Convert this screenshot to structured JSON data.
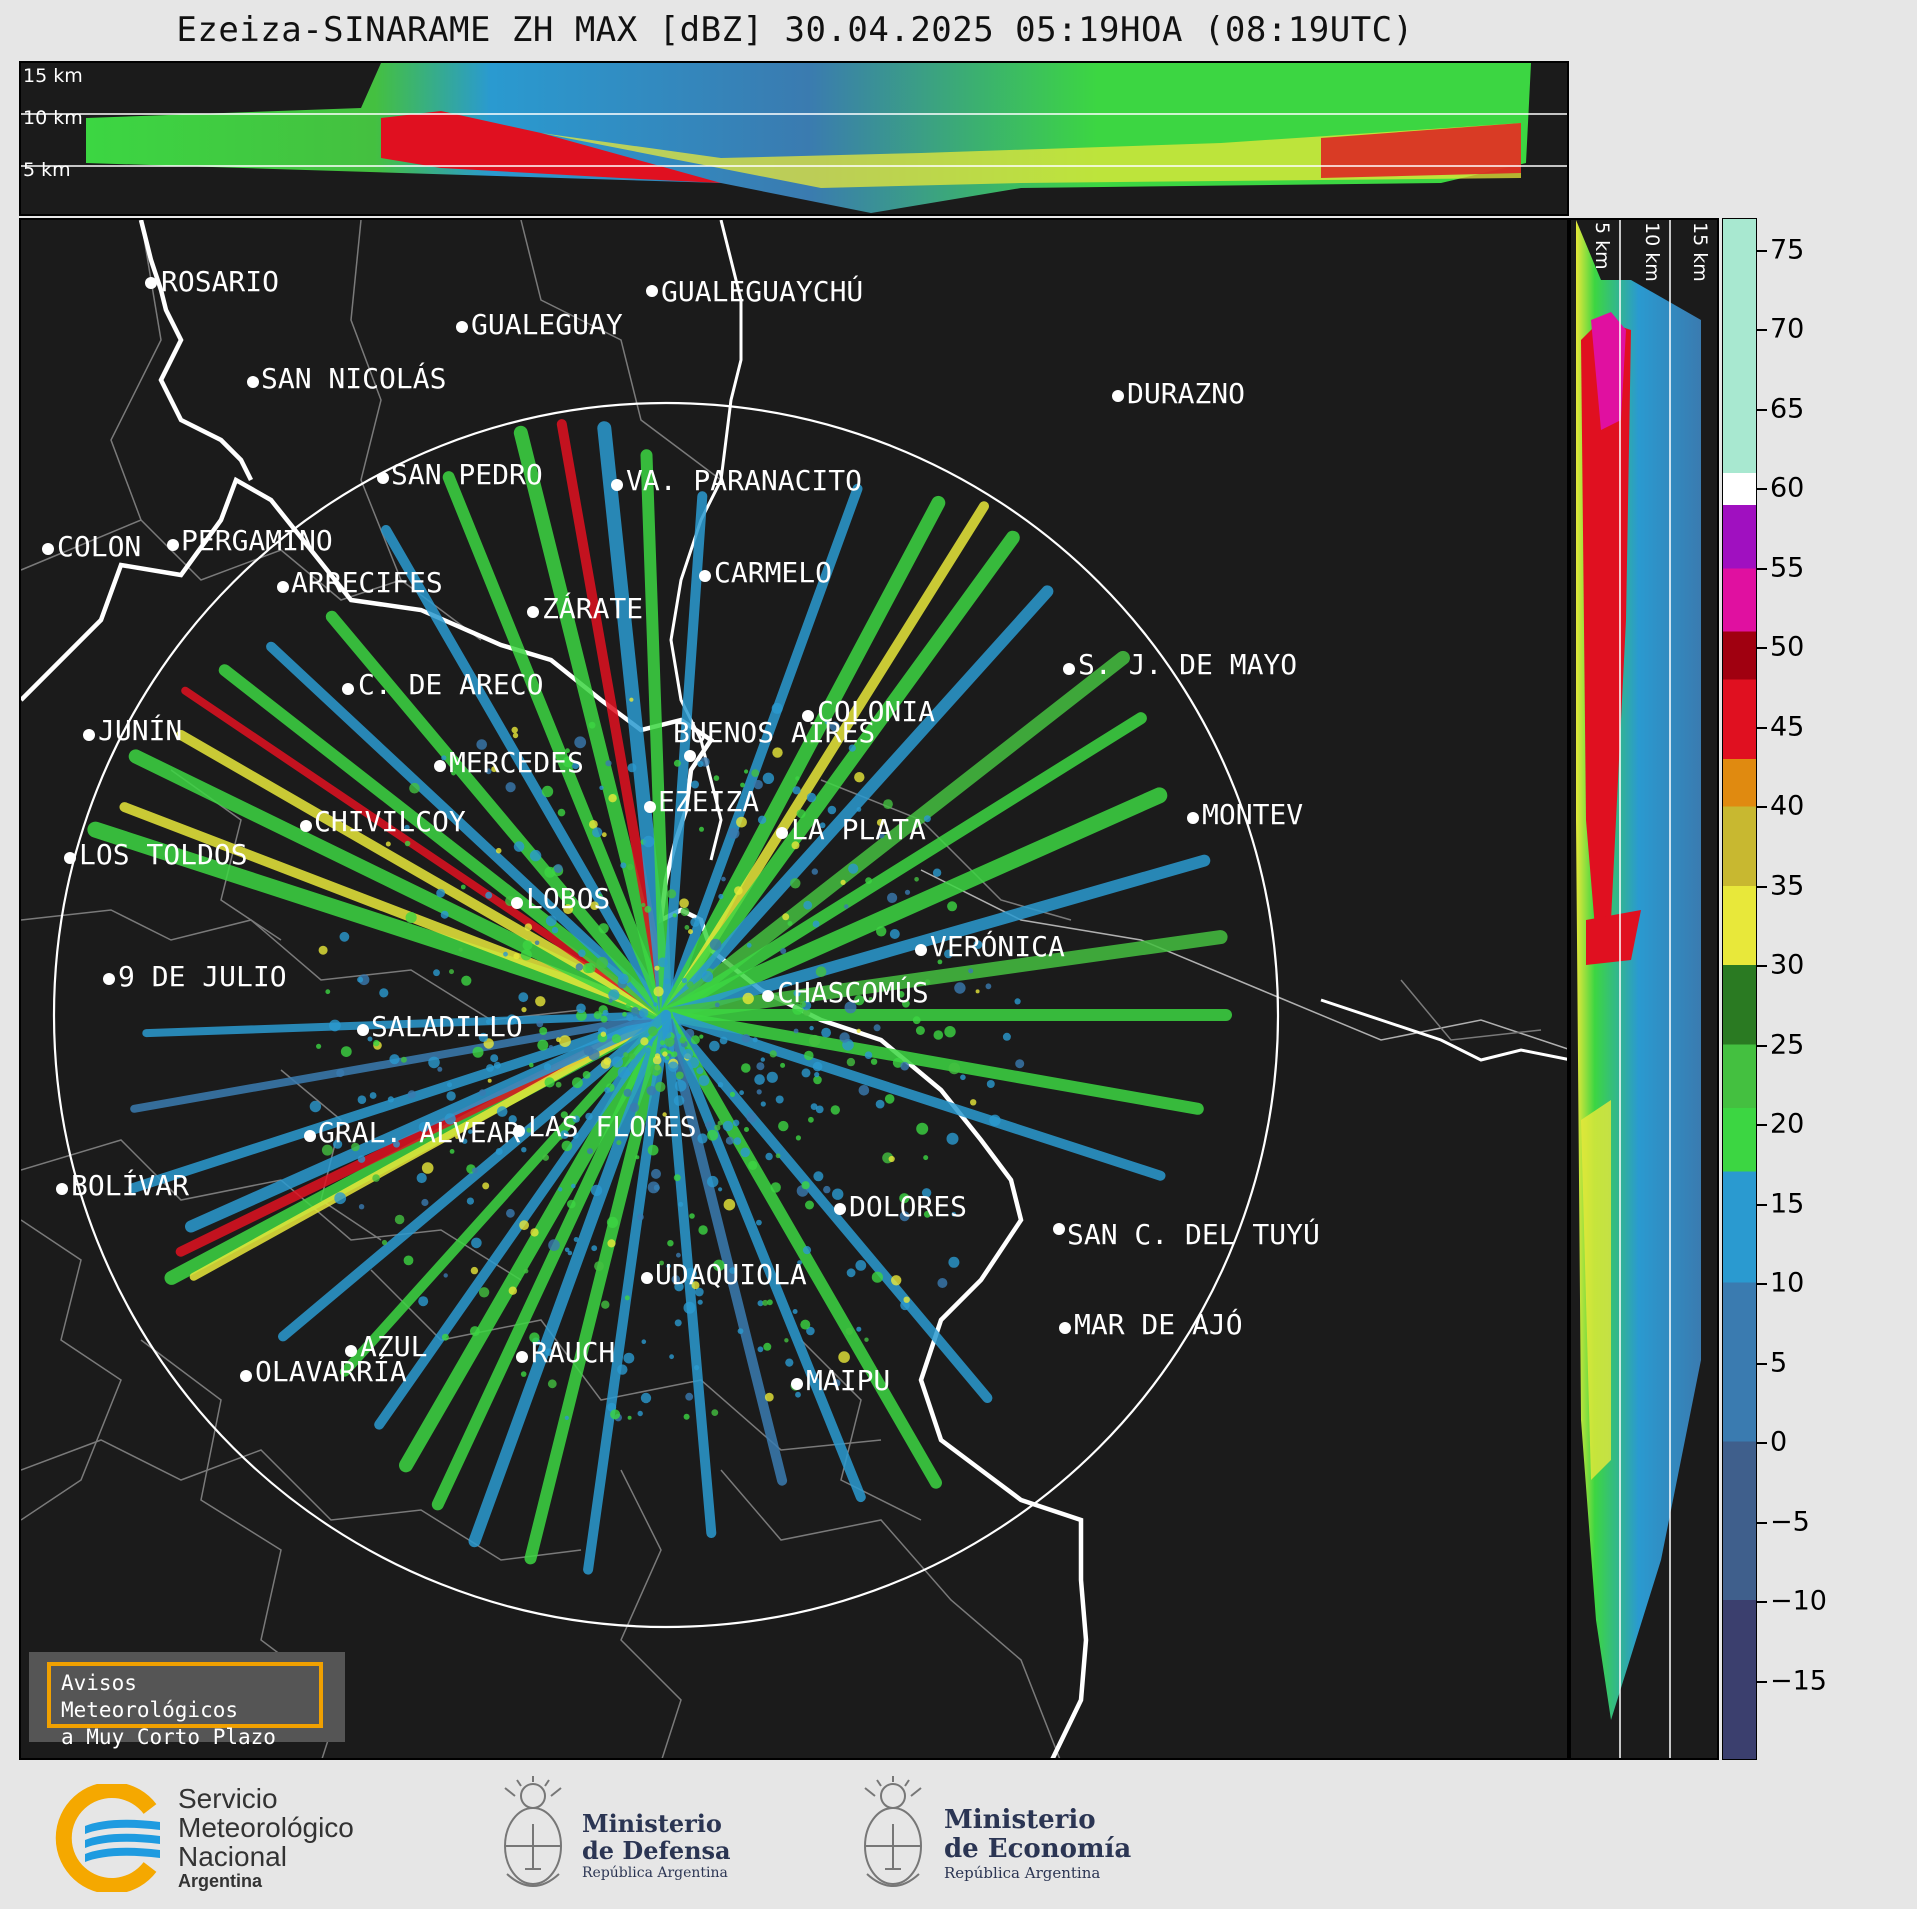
{
  "title": "Ezeiza-SINARAME ZH MAX [dBZ] 30.04.2025 05:19HOA (08:19UTC)",
  "height_labels_top": [
    "15 km",
    "10 km",
    "5 km"
  ],
  "height_labels_side": [
    "5 km",
    "10 km",
    "15 km"
  ],
  "cities": [
    {
      "name": "ROSARIO"
    },
    {
      "name": "GUALEGUAYCHÚ"
    },
    {
      "name": "GUALEGUAY"
    },
    {
      "name": "SAN NICOLÁS"
    },
    {
      "name": "DURAZNO"
    },
    {
      "name": "SAN PEDRO"
    },
    {
      "name": "VA. PARANACITO"
    },
    {
      "name": "COLON"
    },
    {
      "name": "PERGAMINO"
    },
    {
      "name": "CARMELO"
    },
    {
      "name": "ARRECIFES"
    },
    {
      "name": "ZÁRATE"
    },
    {
      "name": "S. J. DE MAYO"
    },
    {
      "name": "C. DE ARECO"
    },
    {
      "name": "COLONIA"
    },
    {
      "name": "JUNÍN"
    },
    {
      "name": "BUENOS AIRES"
    },
    {
      "name": "MERCEDES"
    },
    {
      "name": "EZEIZA"
    },
    {
      "name": "MONTEV"
    },
    {
      "name": "CHIVILCOY"
    },
    {
      "name": "LA PLATA"
    },
    {
      "name": "LOS TOLDOS"
    },
    {
      "name": "LOBOS"
    },
    {
      "name": "VERÓNICA"
    },
    {
      "name": "9 DE JULIO"
    },
    {
      "name": "CHASCOMÚS"
    },
    {
      "name": "SALADILLO"
    },
    {
      "name": "GRAL. ALVEAR"
    },
    {
      "name": "LAS FLORES"
    },
    {
      "name": "BOLÍVAR"
    },
    {
      "name": "DOLORES"
    },
    {
      "name": "SAN C. DEL TUYÚ"
    },
    {
      "name": "UDAQUIOLA"
    },
    {
      "name": "MAR DE AJÓ"
    },
    {
      "name": "AZUL"
    },
    {
      "name": "RAUCH"
    },
    {
      "name": "OLAVARRÍA"
    },
    {
      "name": "MAIPU"
    }
  ],
  "colorbar": {
    "label_values": [
      "75",
      "70",
      "65",
      "60",
      "55",
      "50",
      "45",
      "40",
      "35",
      "30",
      "25",
      "20",
      "15",
      "10",
      "5",
      "0",
      "−5",
      "−10",
      "−15"
    ],
    "range_min": -20,
    "range_max": 77,
    "stops": [
      {
        "from": -20,
        "to": -10,
        "color": "#3b3f6e"
      },
      {
        "from": -10,
        "to": 0,
        "color": "#3f5f8c"
      },
      {
        "from": 0,
        "to": 10,
        "color": "#3a7bb0"
      },
      {
        "from": 10,
        "to": 17,
        "color": "#2a9ad0"
      },
      {
        "from": 17,
        "to": 21,
        "color": "#3cd642"
      },
      {
        "from": 21,
        "to": 25,
        "color": "#44c040"
      },
      {
        "from": 25,
        "to": 30,
        "color": "#2a7a22"
      },
      {
        "from": 30,
        "to": 35,
        "color": "#e8e83a"
      },
      {
        "from": 35,
        "to": 40,
        "color": "#c8b830"
      },
      {
        "from": 40,
        "to": 43,
        "color": "#e08a10"
      },
      {
        "from": 43,
        "to": 48,
        "color": "#e01020"
      },
      {
        "from": 48,
        "to": 51,
        "color": "#a00010"
      },
      {
        "from": 51,
        "to": 55,
        "color": "#e010a0"
      },
      {
        "from": 55,
        "to": 59,
        "color": "#a010c0"
      },
      {
        "from": 59,
        "to": 61,
        "color": "#ffffff"
      },
      {
        "from": 61,
        "to": 77,
        "color": "#a8e8d0"
      }
    ]
  },
  "badge": {
    "line1": "Avisos Meteorológicos",
    "line2": "a Muy Corto Plazo"
  },
  "logos": {
    "smn": {
      "line1": "Servicio",
      "line2": "Meteorológico",
      "line3": "Nacional",
      "line4": "Argentina"
    },
    "defensa": {
      "line1": "Ministerio",
      "line2": "de Defensa",
      "line3": "República Argentina"
    },
    "economia": {
      "line1": "Ministerio",
      "line2": "de Economía",
      "line3": "República Argentina"
    }
  },
  "colors": {
    "background": "#1b1b1b",
    "page": "#e6e6e6",
    "accent_badge": "#f0a000",
    "smn_blue": "#1e9be0",
    "smn_orange": "#f5a800",
    "ministry_navy": "#2b3553"
  }
}
